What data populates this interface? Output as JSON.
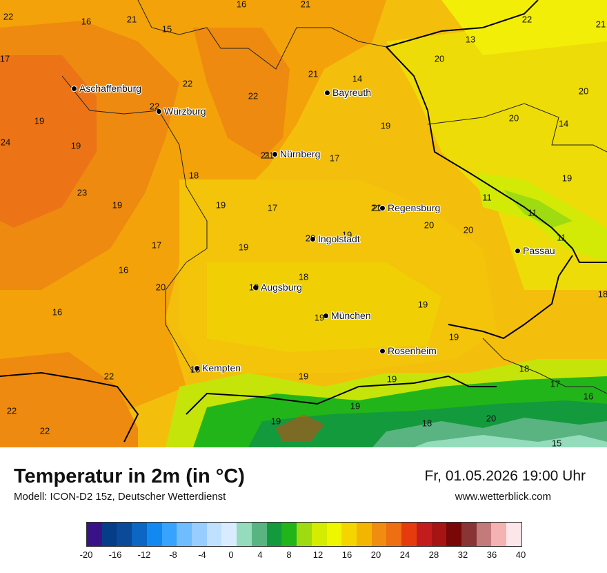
{
  "header": {
    "title": "Temperatur in 2m (in °C)",
    "model": "Modell: ICON-D2 15z, Deutscher Wetterdienst",
    "datetime": "Fr, 01.05.2026 19:00 Uhr",
    "website": "www.wetterblick.com"
  },
  "cities": [
    {
      "name": "Aschaffenburg",
      "value": ""
    },
    {
      "name": "Würzburg",
      "value": "22"
    },
    {
      "name": "Bayreuth",
      "value": ""
    },
    {
      "name": "Nürnberg",
      "value": "21"
    },
    {
      "name": "Regensburg",
      "value": "21"
    },
    {
      "name": "Ingolstadt",
      "value": "20"
    },
    {
      "name": "Passau",
      "value": ""
    },
    {
      "name": "Augsburg",
      "value": "19"
    },
    {
      "name": "München",
      "value": "19"
    },
    {
      "name": "Rosenheim",
      "value": ""
    },
    {
      "name": "Kempten",
      "value": "18"
    }
  ],
  "values": [
    "22",
    "16",
    "21",
    "16",
    "21",
    "15",
    "22",
    "13",
    "17",
    "20",
    "21",
    "21",
    "14",
    "22",
    "22",
    "20",
    "19",
    "20",
    "19",
    "19",
    "14",
    "24",
    "21",
    "17",
    "18",
    "19",
    "23",
    "19",
    "19",
    "17",
    "11",
    "11",
    "21",
    "20",
    "20",
    "19",
    "17",
    "19",
    "11",
    "16",
    "20",
    "18",
    "16",
    "19",
    "19",
    "19",
    "19",
    "18",
    "17",
    "22",
    "19",
    "16",
    "22",
    "19",
    "20",
    "18",
    "18",
    "22",
    "15"
  ],
  "legend": {
    "colors": [
      "#3a1287",
      "#063d88",
      "#0a4a99",
      "#0b66c4",
      "#1289f0",
      "#36a4ff",
      "#6fbcff",
      "#98cdff",
      "#bfe0ff",
      "#d9ecff",
      "#94dcbb",
      "#5ab482",
      "#139a3c",
      "#22b51a",
      "#9edb11",
      "#d4ec00",
      "#eef600",
      "#f5d500",
      "#f3b500",
      "#f08c10",
      "#ee6e12",
      "#e63c0d",
      "#c41c1c",
      "#a61414",
      "#7a0707",
      "#8a3535",
      "#c27a7a",
      "#f4b2b2",
      "#fde6ea"
    ],
    "ticks": [
      "-20",
      "-16",
      "-12",
      "-8",
      "-4",
      "0",
      "4",
      "8",
      "12",
      "16",
      "20",
      "24",
      "28",
      "32",
      "36",
      "40"
    ]
  }
}
